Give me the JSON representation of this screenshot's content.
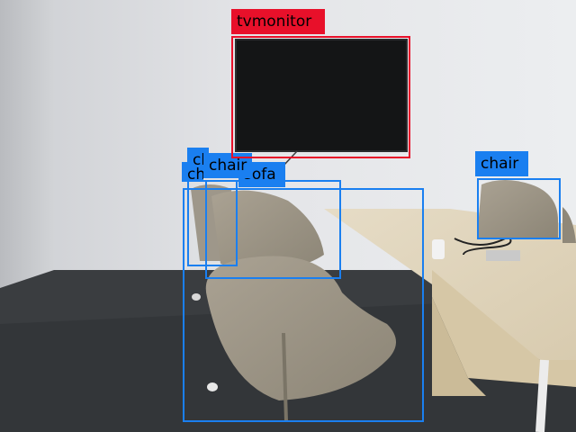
{
  "colors": {
    "tvmonitor": "#e8102a",
    "chair": "#1a7ff0",
    "sofa": "#1a7ff0"
  },
  "detections": [
    {
      "label": "chair"
    },
    {
      "label": "chair"
    },
    {
      "label": "chair"
    },
    {
      "label": "sofa"
    },
    {
      "label": "chair"
    },
    {
      "label": "tvmonitor"
    }
  ]
}
